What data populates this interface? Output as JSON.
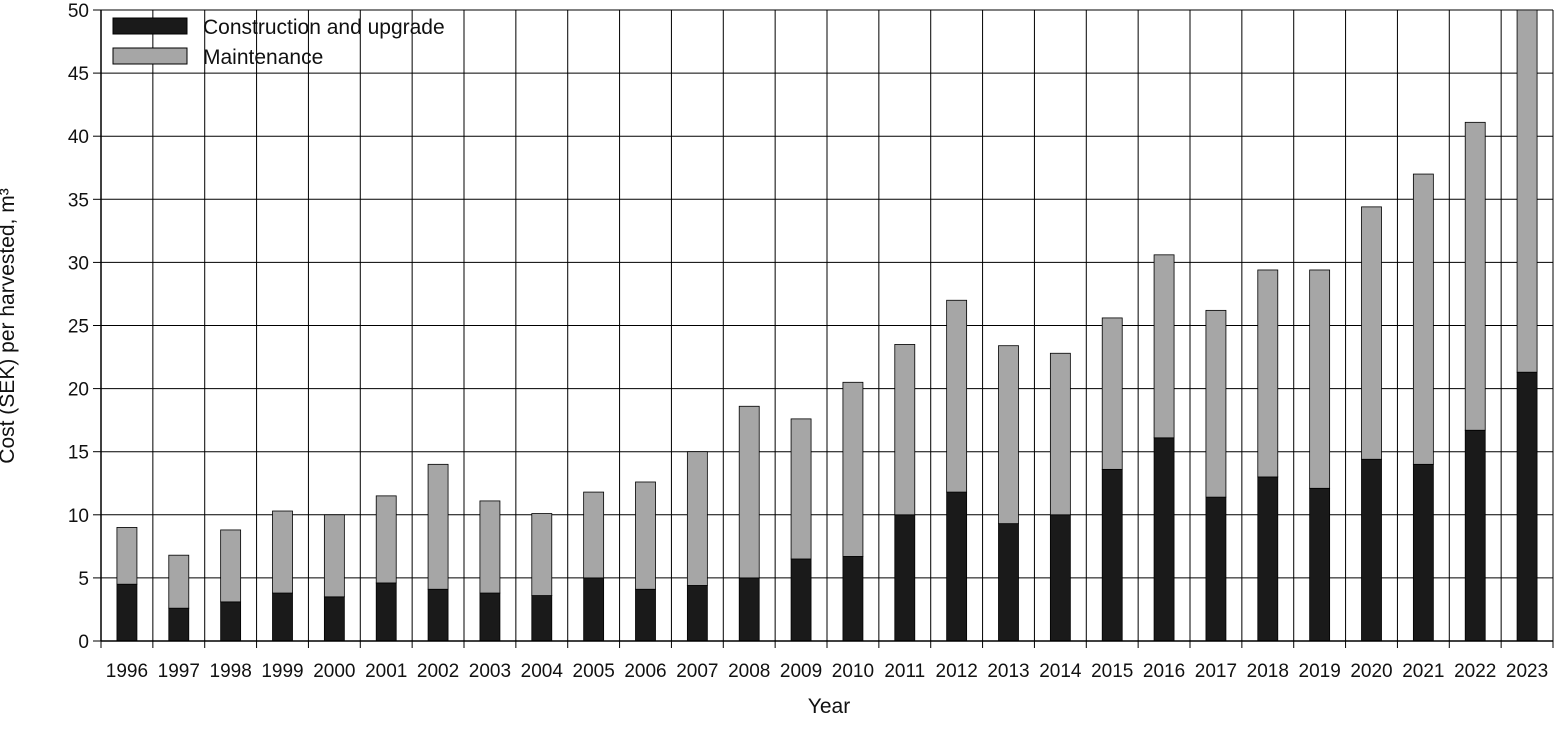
{
  "chart_data": {
    "type": "bar",
    "stacked": true,
    "title": "",
    "xlabel": "Year",
    "ylabel": "Cost (SEK) per harvested, m³",
    "ylim": [
      0,
      50
    ],
    "yticks": [
      0,
      5,
      10,
      15,
      20,
      25,
      30,
      35,
      40,
      45,
      50
    ],
    "grid": true,
    "legend_position": "top-left",
    "categories": [
      "1996",
      "1997",
      "1998",
      "1999",
      "2000",
      "2001",
      "2002",
      "2003",
      "2004",
      "2005",
      "2006",
      "2007",
      "2008",
      "2009",
      "2010",
      "2011",
      "2012",
      "2013",
      "2014",
      "2015",
      "2016",
      "2017",
      "2018",
      "2019",
      "2020",
      "2021",
      "2022",
      "2023"
    ],
    "series": [
      {
        "name": "Construction and upgrade",
        "color": "#1a1a1a",
        "values": [
          4.5,
          2.6,
          3.1,
          3.8,
          3.5,
          4.6,
          4.1,
          3.8,
          3.6,
          5.0,
          4.1,
          4.4,
          5.0,
          6.5,
          6.7,
          10.0,
          11.8,
          9.3,
          10.0,
          13.6,
          16.1,
          11.4,
          13.0,
          12.1,
          14.4,
          14.0,
          16.7,
          21.3
        ]
      },
      {
        "name": "Maintenance",
        "color": "#a6a6a6",
        "values": [
          4.5,
          4.2,
          5.7,
          6.5,
          6.5,
          6.9,
          9.9,
          7.3,
          6.5,
          6.8,
          8.5,
          10.6,
          13.6,
          11.1,
          13.8,
          13.5,
          15.2,
          14.1,
          12.8,
          12.0,
          14.5,
          14.8,
          16.4,
          17.3,
          20.0,
          23.0,
          24.4,
          28.7
        ]
      }
    ]
  }
}
